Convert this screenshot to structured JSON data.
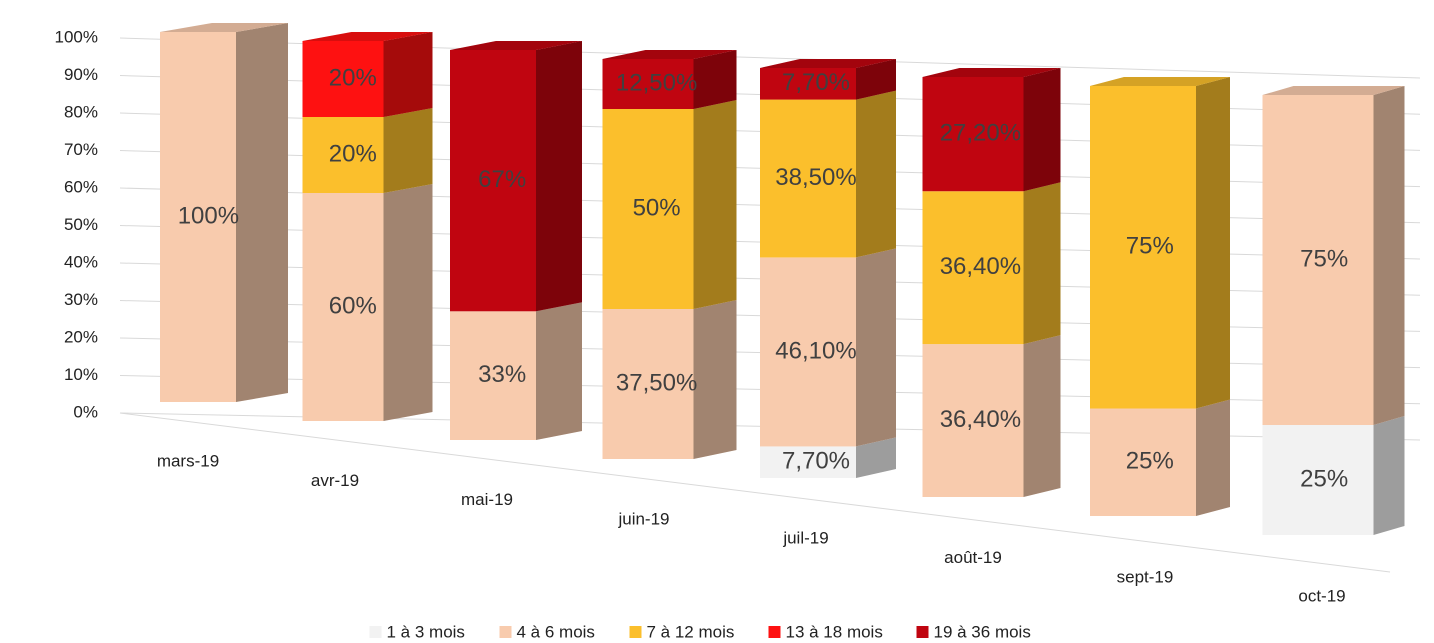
{
  "chart_data": {
    "type": "bar3d_stacked",
    "categories": [
      "mars-19",
      "avr-19",
      "mai-19",
      "juin-19",
      "juil-19",
      "août-19",
      "sept-19",
      "oct-19"
    ],
    "series": [
      {
        "name": "1 à 3 mois",
        "color": "#f2f2f2",
        "values": [
          null,
          null,
          null,
          null,
          7.7,
          null,
          null,
          25
        ],
        "value_labels": [
          null,
          null,
          null,
          null,
          "7,70%",
          null,
          null,
          "25%"
        ]
      },
      {
        "name": "4 à 6 mois",
        "color": "#f8cbad",
        "values": [
          100,
          60,
          33,
          37.5,
          46.1,
          36.4,
          25,
          75
        ],
        "value_labels": [
          "100%",
          "60%",
          "33%",
          "37,50%",
          "46,10%",
          "36,40%",
          "25%",
          "75%"
        ]
      },
      {
        "name": "7 à 12 mois",
        "color": "#fbbf2c",
        "values": [
          null,
          20,
          null,
          50,
          38.5,
          36.4,
          75,
          null
        ],
        "value_labels": [
          null,
          "20%",
          null,
          "50%",
          "38,50%",
          "36,40%",
          "75%",
          null
        ]
      },
      {
        "name": "13 à 18 mois",
        "color": "#fe1111",
        "values": [
          null,
          20,
          null,
          null,
          null,
          null,
          null,
          null
        ],
        "value_labels": [
          null,
          "20%",
          null,
          null,
          null,
          null,
          null,
          null
        ]
      },
      {
        "name": "19 à 36 mois",
        "color": "#c00510",
        "values": [
          null,
          null,
          67,
          12.5,
          7.7,
          27.2,
          null,
          null
        ],
        "value_labels": [
          null,
          null,
          "67%",
          "12,50%",
          "7,70%",
          "27,20%",
          null,
          null
        ]
      }
    ],
    "ylim": [
      0,
      100
    ],
    "yticks": [
      {
        "value": 0,
        "label": "0%"
      },
      {
        "value": 10,
        "label": "10%"
      },
      {
        "value": 20,
        "label": "20%"
      },
      {
        "value": 30,
        "label": "30%"
      },
      {
        "value": 40,
        "label": "40%"
      },
      {
        "value": 50,
        "label": "50%"
      },
      {
        "value": 60,
        "label": "60%"
      },
      {
        "value": 70,
        "label": "70%"
      },
      {
        "value": 80,
        "label": "80%"
      },
      {
        "value": 90,
        "label": "90%"
      },
      {
        "value": 100,
        "label": "100%"
      }
    ],
    "grid": true,
    "legend": "bottom"
  }
}
